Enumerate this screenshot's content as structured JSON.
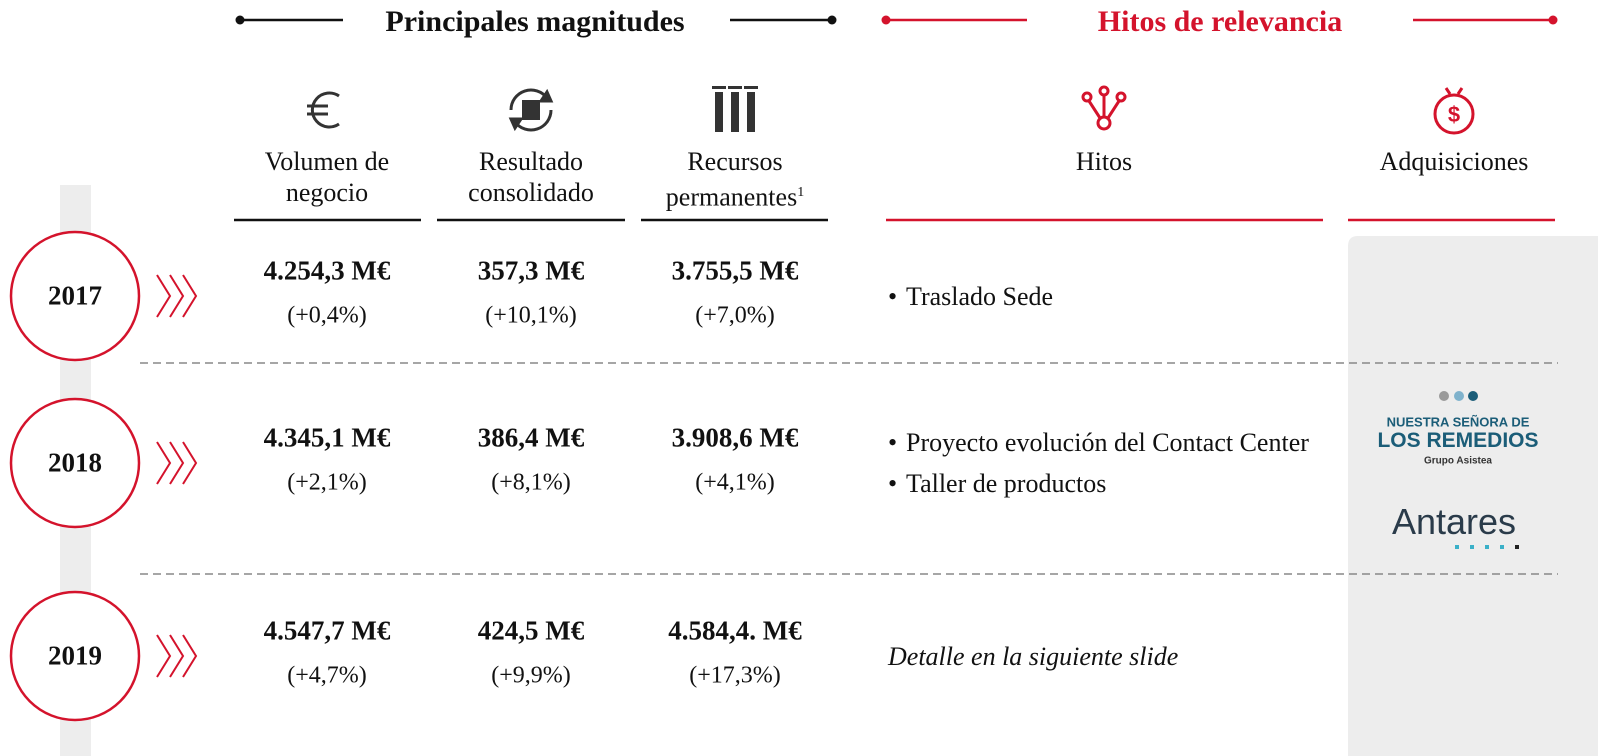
{
  "sections": {
    "magnitudes": "Principales magnitudes",
    "hitos": "Hitos de relevancia"
  },
  "columns": [
    {
      "label": "Volumen de negocio"
    },
    {
      "label": "Resultado consolidado"
    },
    {
      "label": "Recursos permanentes",
      "note": "1"
    }
  ],
  "hitos_header": "Hitos",
  "adquisiciones_header": "Adquisiciones",
  "rows": [
    {
      "year": "2017",
      "values": [
        "4.254,3 M€",
        "357,3 M€",
        "3.755,5 M€"
      ],
      "changes": [
        "(+0,4%)",
        "(+10,1%)",
        "(+7,0%)"
      ],
      "hitos": [
        "Traslado Sede"
      ]
    },
    {
      "year": "2018",
      "values": [
        "4.345,1 M€",
        "386,4 M€",
        "3.908,6 M€"
      ],
      "changes": [
        "(+2,1%)",
        "(+8,1%)",
        "(+4,1%)"
      ],
      "hitos": [
        "Proyecto evolución del Contact Center",
        "Taller de productos"
      ]
    },
    {
      "year": "2019",
      "values": [
        "4.547,7 M€",
        "424,5 M€",
        "4.584,4. M€"
      ],
      "changes": [
        "(+4,7%)",
        "(+9,9%)",
        "(+17,3%)"
      ],
      "hitos_note": "Detalle en la siguiente slide"
    }
  ],
  "acquisitions": [
    {
      "line1": "NUESTRA SEÑORA DE",
      "line2": "LOS REMEDIOS",
      "line3": "Grupo Asistea"
    },
    {
      "name": "Antares"
    }
  ]
}
